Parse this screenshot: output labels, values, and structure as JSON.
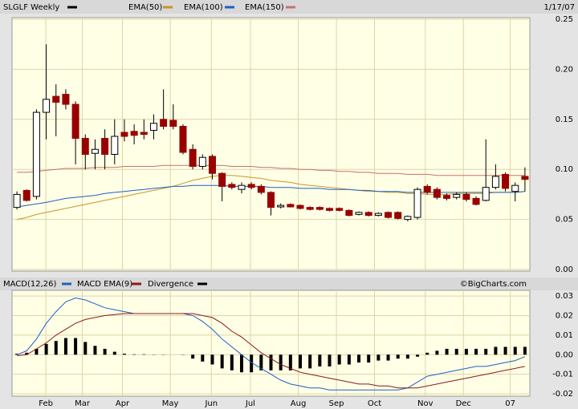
{
  "chart_data": [
    {
      "type": "candlestick",
      "title": "SLGLF Weekly",
      "color": "#000000",
      "date": "1/17/07",
      "up_color": "#ffffff",
      "down_color": "#990000",
      "categories": [
        null,
        null,
        null,
        null,
        null,
        null,
        null,
        null,
        null,
        null,
        null,
        null,
        null,
        null,
        null,
        null,
        null,
        null,
        null,
        null,
        null,
        null,
        null,
        null,
        null,
        null,
        null,
        null,
        null,
        null,
        null,
        null,
        null,
        null,
        null,
        null,
        null,
        null,
        null,
        null,
        null,
        null,
        null,
        null,
        null,
        null,
        null,
        null,
        null,
        null,
        null,
        null,
        null
      ],
      "open": [
        0.062,
        0.079,
        0.073,
        0.157,
        0.173,
        0.175,
        0.165,
        0.131,
        0.116,
        0.131,
        0.115,
        0.137,
        0.138,
        0.137,
        0.139,
        0.15,
        0.149,
        0.143,
        0.12,
        0.103,
        0.113,
        0.096,
        0.085,
        0.08,
        0.085,
        0.083,
        0.077,
        0.0625,
        0.065,
        0.064,
        0.062,
        0.062,
        0.061,
        0.061,
        0.059,
        0.055,
        0.057,
        0.054,
        0.057,
        0.057,
        0.05,
        0.052,
        0.083,
        0.08,
        0.074,
        0.072,
        0.075,
        0.071,
        0.069,
        0.082,
        0.095,
        0.078,
        0.093
      ],
      "high": [
        0.078,
        0.08,
        0.16,
        0.225,
        0.185,
        0.18,
        0.168,
        0.135,
        0.13,
        0.14,
        0.15,
        0.15,
        0.145,
        0.15,
        0.155,
        0.18,
        0.165,
        0.145,
        0.125,
        0.115,
        0.115,
        0.097,
        0.087,
        0.087,
        0.087,
        0.085,
        0.078,
        0.066,
        0.066,
        0.065,
        0.063,
        0.063,
        0.062,
        0.062,
        0.06,
        0.058,
        0.058,
        0.057,
        0.058,
        0.058,
        0.054,
        0.082,
        0.085,
        0.082,
        0.076,
        0.077,
        0.077,
        0.073,
        0.13,
        0.105,
        0.097,
        0.087,
        0.102
      ],
      "low": [
        0.06,
        0.068,
        0.07,
        0.13,
        0.133,
        0.16,
        0.105,
        0.1,
        0.1,
        0.1,
        0.105,
        0.128,
        0.125,
        0.13,
        0.13,
        0.14,
        0.14,
        0.115,
        0.1,
        0.1,
        0.09,
        0.068,
        0.08,
        0.076,
        0.08,
        0.075,
        0.054,
        0.061,
        0.062,
        0.06,
        0.059,
        0.059,
        0.058,
        0.058,
        0.053,
        0.054,
        0.053,
        0.053,
        0.051,
        0.05,
        0.048,
        0.05,
        0.075,
        0.07,
        0.069,
        0.07,
        0.068,
        0.064,
        0.068,
        0.08,
        0.078,
        0.068,
        0.078
      ],
      "close": [
        0.075,
        0.069,
        0.157,
        0.17,
        0.167,
        0.165,
        0.131,
        0.115,
        0.12,
        0.115,
        0.133,
        0.133,
        0.134,
        0.135,
        0.146,
        0.143,
        0.143,
        0.117,
        0.103,
        0.112,
        0.096,
        0.083,
        0.082,
        0.084,
        0.082,
        0.077,
        0.062,
        0.064,
        0.0625,
        0.061,
        0.06,
        0.06,
        0.059,
        0.059,
        0.054,
        0.057,
        0.054,
        0.056,
        0.052,
        0.051,
        0.053,
        0.08,
        0.077,
        0.072,
        0.071,
        0.075,
        0.07,
        0.065,
        0.082,
        0.093,
        0.081,
        0.084,
        0.09
      ],
      "series": [
        {
          "name": "EMA(50)",
          "color": "#c8962a",
          "values": [
            0.05,
            0.052,
            0.055,
            0.057,
            0.059,
            0.061,
            0.063,
            0.065,
            0.067,
            0.069,
            0.071,
            0.073,
            0.075,
            0.077,
            0.079,
            0.081,
            0.083,
            0.086,
            0.089,
            0.091,
            0.093,
            0.094,
            0.094,
            0.093,
            0.092,
            0.091,
            0.089,
            0.088,
            0.087,
            0.085,
            0.084,
            0.083,
            0.082,
            0.081,
            0.08,
            0.079,
            0.078,
            0.078,
            0.077,
            0.077,
            0.076,
            0.076,
            0.075,
            0.075,
            0.075,
            0.076,
            0.076,
            0.076,
            0.076,
            0.077,
            0.077,
            0.077,
            0.078
          ]
        },
        {
          "name": "EMA(100)",
          "color": "#1f5fc8",
          "values": [
            0.0625,
            0.064,
            0.0655,
            0.067,
            0.069,
            0.071,
            0.072,
            0.073,
            0.074,
            0.076,
            0.077,
            0.078,
            0.079,
            0.08,
            0.081,
            0.082,
            0.083,
            0.083,
            0.084,
            0.084,
            0.084,
            0.084,
            0.083,
            0.083,
            0.083,
            0.083,
            0.082,
            0.082,
            0.082,
            0.081,
            0.081,
            0.081,
            0.08,
            0.08,
            0.08,
            0.079,
            0.079,
            0.078,
            0.078,
            0.078,
            0.077,
            0.077,
            0.077,
            0.077,
            0.077,
            0.077,
            0.077,
            0.077,
            0.077,
            0.077,
            0.077,
            0.077,
            0.078
          ]
        },
        {
          "name": "EMA(150)",
          "color": "#c87070",
          "values": [
            0.097,
            0.097,
            0.098,
            0.099,
            0.1,
            0.101,
            0.101,
            0.101,
            0.102,
            0.102,
            0.102,
            0.103,
            0.103,
            0.103,
            0.103,
            0.104,
            0.104,
            0.104,
            0.104,
            0.104,
            0.104,
            0.104,
            0.103,
            0.103,
            0.103,
            0.102,
            0.102,
            0.101,
            0.101,
            0.1,
            0.1,
            0.099,
            0.099,
            0.098,
            0.098,
            0.097,
            0.097,
            0.096,
            0.096,
            0.096,
            0.095,
            0.095,
            0.095,
            0.094,
            0.094,
            0.094,
            0.094,
            0.094,
            0.094,
            0.094,
            0.094,
            0.094,
            0.094
          ]
        }
      ],
      "ylim": [
        -0.0016,
        0.2516
      ],
      "yticks": [
        {
          "value": 0,
          "label": "0.00"
        },
        0.05,
        {
          "value": 0.1,
          "label": "0.10"
        },
        0.15,
        {
          "value": 0.2,
          "label": "0.20"
        },
        0.25
      ],
      "grid": true
    },
    {
      "type": "macd",
      "credit": "©BigCharts.com",
      "categories": [
        null,
        null,
        null,
        null,
        null,
        null,
        null,
        null,
        null,
        null,
        null,
        null,
        null,
        null,
        null,
        null,
        null,
        null,
        null,
        null,
        null,
        null,
        null,
        null,
        null,
        null,
        null,
        null,
        null,
        null,
        null,
        null,
        null,
        null,
        null,
        null,
        null,
        null,
        null,
        null,
        null,
        null,
        null,
        null,
        null,
        null,
        null,
        null,
        null,
        null,
        null,
        null,
        null
      ],
      "series": [
        {
          "name": "MACD(12,26)",
          "color": "#1f5fc8",
          "values": [
            0,
            0.002,
            0.008,
            0.016,
            0.022,
            0.027,
            0.029,
            0.028,
            0.026,
            0.024,
            0.023,
            0.022,
            0.021,
            0.021,
            0.021,
            0.021,
            0.021,
            0.021,
            0.02,
            0.017,
            0.013,
            0.008,
            0.004,
            0.0,
            -0.004,
            -0.007,
            -0.01,
            -0.013,
            -0.015,
            -0.016,
            -0.017,
            -0.017,
            -0.018,
            -0.018,
            -0.018,
            -0.018,
            -0.018,
            -0.018,
            -0.018,
            -0.018,
            -0.017,
            -0.014,
            -0.011,
            -0.01,
            -0.009,
            -0.008,
            -0.007,
            -0.006,
            -0.006,
            -0.005,
            -0.004,
            -0.003,
            -0.001
          ]
        },
        {
          "name": "MACD EMA(9)",
          "color": "#8b1a1a",
          "values": [
            -0.0005,
            0,
            0.003,
            0.006,
            0.01,
            0.013,
            0.016,
            0.018,
            0.019,
            0.02,
            0.0205,
            0.021,
            0.021,
            0.021,
            0.021,
            0.021,
            0.021,
            0.021,
            0.021,
            0.02,
            0.019,
            0.016,
            0.012,
            0.009,
            0.005,
            0.001,
            -0.002,
            -0.005,
            -0.007,
            -0.009,
            -0.01,
            -0.011,
            -0.012,
            -0.013,
            -0.014,
            -0.015,
            -0.015,
            -0.016,
            -0.016,
            -0.017,
            -0.017,
            -0.017,
            -0.016,
            -0.015,
            -0.014,
            -0.013,
            -0.012,
            -0.011,
            -0.01,
            -0.009,
            -0.008,
            -0.007,
            -0.006
          ]
        },
        {
          "name": "Divergence",
          "color": "#000000",
          "kind": "bar",
          "values": [
            0.0005,
            0.001,
            0.003,
            0.0055,
            0.007,
            0.0085,
            0.0085,
            0.0065,
            0.0045,
            0.003,
            0.0015,
            0.0005,
            0.0002,
            0.0002,
            0.0001,
            0.0001,
            0,
            -0.0001,
            -0.002,
            -0.0035,
            -0.005,
            -0.007,
            -0.008,
            -0.009,
            -0.009,
            -0.008,
            -0.008,
            -0.008,
            -0.008,
            -0.007,
            -0.007,
            -0.006,
            -0.006,
            -0.005,
            -0.005,
            -0.004,
            -0.004,
            -0.003,
            -0.003,
            -0.002,
            -0.002,
            -0.001,
            0.001,
            0.002,
            0.003,
            0.003,
            0.003,
            0.003,
            0.003,
            0.004,
            0.004,
            0.004,
            0.004
          ]
        }
      ],
      "ylim": [
        -0.0212,
        0.0329
      ],
      "yticks": [
        -0.02,
        -0.01,
        {
          "value": 0,
          "label": "0.00"
        },
        0.01,
        0.02,
        0.03
      ],
      "xticks": [
        {
          "value": 2.96,
          "label": "Feb"
        },
        {
          "value": 6.7,
          "label": "Mar"
        },
        {
          "value": 10.8,
          "label": "Apr"
        },
        {
          "value": 15.7,
          "label": "May"
        },
        {
          "value": 19.9,
          "label": "Jun"
        },
        {
          "value": 23.9,
          "label": "Jul"
        },
        {
          "value": 28.8,
          "label": "Aug"
        },
        {
          "value": 32.7,
          "label": "Sep"
        },
        {
          "value": 36.6,
          "label": "Oct"
        },
        {
          "value": 41.8,
          "label": "Nov"
        },
        {
          "value": 45.7,
          "label": "Dec"
        },
        {
          "value": 50.5,
          "label": "07"
        }
      ],
      "grid": true
    }
  ]
}
